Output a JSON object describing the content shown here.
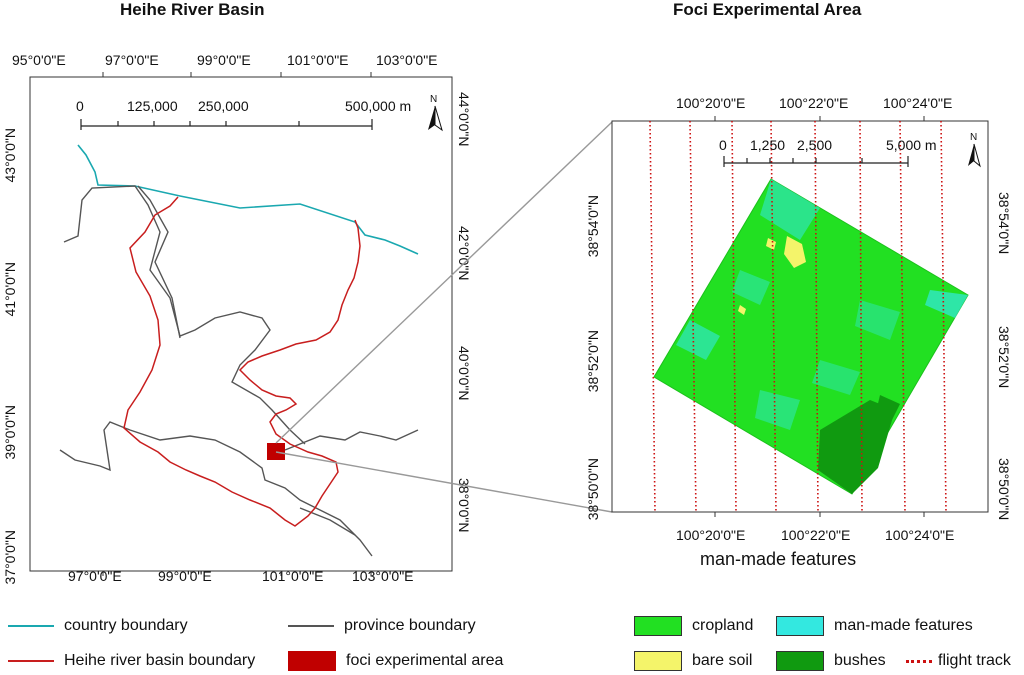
{
  "left_map": {
    "title": "Heihe River Basin",
    "top_ticks": [
      "95°0'0\"E",
      "97°0'0\"E",
      "99°0'0\"E",
      "101°0'0\"E",
      "103°0'0\"E"
    ],
    "bottom_ticks": [
      "97°0'0\"E",
      "99°0'0\"E",
      "101°0'0\"E",
      "103°0'0\"E"
    ],
    "left_ticks": [
      "43°0'0\"N",
      "41°0'0\"N",
      "39°0'0\"N",
      "37°0'0\"N"
    ],
    "right_ticks": [
      "44°0'0\"N",
      "42°0'0\"N",
      "40°0'0\"N",
      "38°0'0\"N"
    ],
    "scale_labels": [
      "0",
      "125,000",
      "250,000",
      "500,000 m"
    ],
    "north_label": "N"
  },
  "right_map": {
    "title": "Foci Experimental Area",
    "top_ticks": [
      "100°20'0\"E",
      "100°22'0\"E",
      "100°24'0\"E"
    ],
    "bottom_ticks": [
      "100°20'0\"E",
      "100°22'0\"E",
      "100°24'0\"E"
    ],
    "left_ticks": [
      "38°54'0\"N",
      "38°52'0\"N",
      "38°50'0\"N"
    ],
    "right_ticks": [
      "38°54'0\"N",
      "38°52'0\"N",
      "38°50'0\"N"
    ],
    "scale_labels": [
      "0",
      "1,250",
      "2,500",
      "5,000 m"
    ],
    "north_label": "N",
    "caption": "man-made features"
  },
  "legend": {
    "country_boundary": "country boundary",
    "province_boundary": "province boundary",
    "basin_boundary": "Heihe river basin boundary",
    "foci_area": "foci experimental area",
    "cropland": "cropland",
    "man_made": "man-made features",
    "bare_soil": "bare soil",
    "bushes": "bushes",
    "flight_track": "flight track"
  },
  "colors": {
    "country_boundary": "#1aa8b0",
    "province_boundary": "#555555",
    "basin_boundary": "#c81e1e",
    "foci_area": "#c00000",
    "cropland": "#22e022",
    "man_made": "#33e8e0",
    "bare_soil": "#f4f46a",
    "bushes": "#109a10",
    "flight_track": "#cc1111"
  }
}
